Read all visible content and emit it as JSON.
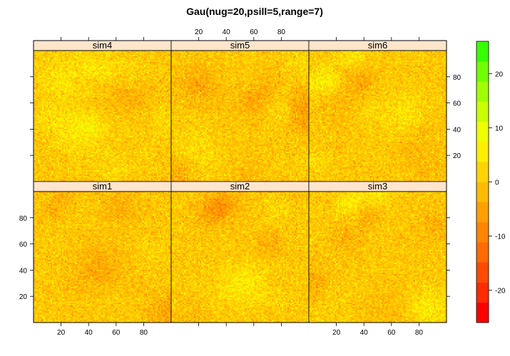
{
  "chart_data": {
    "type": "heatmap",
    "title": "Gau(nug=20,psill=5,range=7)",
    "xlabel": "",
    "ylabel": "",
    "layout": "2 rows x 3 columns of panels sharing axes",
    "panels_top_row": [
      "sim4",
      "sim5",
      "sim6"
    ],
    "panels_bottom_row": [
      "sim1",
      "sim2",
      "sim3"
    ],
    "xlim": [
      0,
      100
    ],
    "ylim": [
      0,
      100
    ],
    "x_ticks": [
      20,
      40,
      60,
      80
    ],
    "y_ticks": [
      20,
      40,
      60,
      80
    ],
    "x_tick_labels": [
      "20",
      "40",
      "60",
      "80"
    ],
    "y_tick_labels": [
      "20",
      "40",
      "60",
      "80"
    ],
    "colorbar": {
      "range": [
        -26,
        26
      ],
      "ticks": [
        -20,
        -10,
        0,
        10,
        20
      ],
      "tick_labels": [
        "-20",
        "-10",
        "0",
        "10",
        "20"
      ],
      "colors_low_to_high": [
        "#ff0000",
        "#ff2a00",
        "#ff4a00",
        "#ff6a00",
        "#ff8400",
        "#ffa000",
        "#ffbb00",
        "#ffd400",
        "#ffee00",
        "#eeff00",
        "#c8ff00",
        "#9fff00",
        "#70ff00",
        "#35ff00"
      ]
    },
    "field": {
      "model": "Gau",
      "nugget": 20,
      "partial_sill": 5,
      "range": 7,
      "typical_range": [
        -6,
        6
      ]
    }
  }
}
